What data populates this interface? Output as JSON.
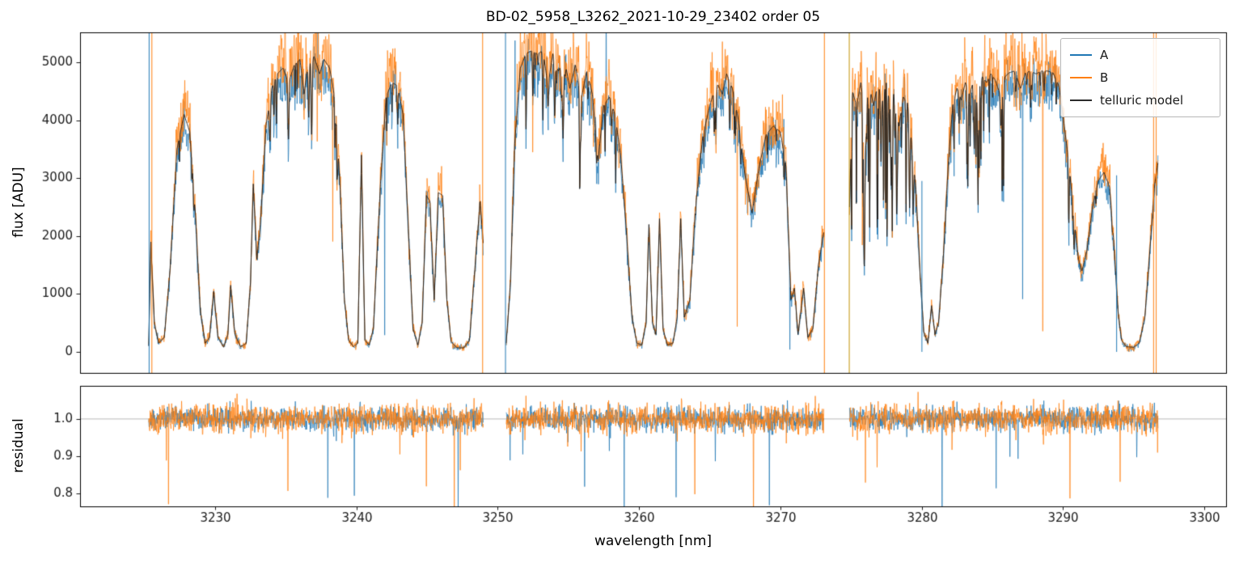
{
  "chart_data": {
    "type": "line",
    "title": "BD-02_5958_L3262_2021-10-29_23402  order 05",
    "xlabel": "wavelength [nm]",
    "ylabel_top": "flux [ADU]",
    "ylabel_bottom": "residual",
    "x_range": [
      3220.44,
      3301.55
    ],
    "flux_range": [
      -363,
      5517
    ],
    "residual_range": [
      0.765,
      1.089
    ],
    "x_ticks": [
      3230,
      3240,
      3250,
      3260,
      3270,
      3280,
      3290,
      3300
    ],
    "flux_ticks": [
      0,
      1000,
      2000,
      3000,
      4000,
      5000
    ],
    "residual_ticks": {
      "values": [
        0.8,
        0.9,
        1.0
      ],
      "labels": [
        "0.8",
        "0.9",
        "1.0"
      ]
    },
    "residual_reference_line": 1.0,
    "legend": {
      "entries": [
        {
          "label": "A",
          "color": "#1f77b4"
        },
        {
          "label": "B",
          "color": "#ff7f0e"
        },
        {
          "label": "telluric model",
          "color": "#2b2b2b"
        }
      ]
    },
    "series_scales": {
      "A": 0.955,
      "B": 1.035
    },
    "noise": {
      "A_base": 25,
      "A_prop": 0.04,
      "B_base": 30,
      "B_prop": 0.05,
      "spike_prob": 0.0035,
      "residual_sigma_A": 0.016,
      "residual_sigma_B": 0.02,
      "residual_spike_prob": 0.004
    },
    "vertical_spikes": [
      {
        "x": 3225.33,
        "color": "#1f77b4"
      },
      {
        "x": 3225.52,
        "color": "#ff7f0e"
      },
      {
        "x": 3248.93,
        "color": "#ff7f0e"
      },
      {
        "x": 3250.55,
        "color": "#1f77b4"
      },
      {
        "x": 3273.12,
        "color": "#ff7f0e"
      },
      {
        "x": 3274.88,
        "color": "#c49102"
      },
      {
        "x": 3280.02,
        "color": "#1f77b4",
        "flux_top": 2950
      },
      {
        "x": 3293.8,
        "color": "#1f77b4",
        "flux_top": 3050
      },
      {
        "x": 3296.42,
        "color": "#ff7f0e"
      },
      {
        "x": 3296.6,
        "color": "#ff7f0e"
      }
    ],
    "segments": [
      {
        "x_start": 3225.3,
        "x_end": 3249.0,
        "model_points": [
          [
            3225.3,
            100
          ],
          [
            3225.45,
            1900
          ],
          [
            3225.7,
            500
          ],
          [
            3226.0,
            150
          ],
          [
            3226.4,
            250
          ],
          [
            3226.8,
            1400
          ],
          [
            3227.3,
            3500
          ],
          [
            3227.8,
            4100
          ],
          [
            3228.2,
            3800
          ],
          [
            3228.6,
            2400
          ],
          [
            3228.95,
            700
          ],
          [
            3229.3,
            150
          ],
          [
            3229.6,
            250
          ],
          [
            3229.9,
            1050
          ],
          [
            3230.2,
            250
          ],
          [
            3230.6,
            80
          ],
          [
            3230.9,
            300
          ],
          [
            3231.1,
            1150
          ],
          [
            3231.4,
            300
          ],
          [
            3231.8,
            90
          ],
          [
            3232.2,
            150
          ],
          [
            3232.5,
            1200
          ],
          [
            3232.7,
            2900
          ],
          [
            3232.95,
            1600
          ],
          [
            3233.2,
            2200
          ],
          [
            3233.6,
            3900
          ],
          [
            3234.0,
            4550
          ],
          [
            3234.4,
            4800
          ],
          [
            3234.8,
            4900
          ],
          [
            3235.2,
            4650
          ],
          [
            3235.6,
            4950
          ],
          [
            3236.0,
            5050
          ],
          [
            3236.3,
            4450
          ],
          [
            3236.6,
            5050
          ],
          [
            3237.0,
            5100
          ],
          [
            3237.4,
            4800
          ],
          [
            3237.7,
            5050
          ],
          [
            3238.1,
            4900
          ],
          [
            3238.5,
            4350
          ],
          [
            3238.85,
            2800
          ],
          [
            3239.15,
            900
          ],
          [
            3239.45,
            200
          ],
          [
            3239.8,
            90
          ],
          [
            3240.1,
            150
          ],
          [
            3240.35,
            3400
          ],
          [
            3240.6,
            200
          ],
          [
            3240.9,
            120
          ],
          [
            3241.2,
            400
          ],
          [
            3241.7,
            2900
          ],
          [
            3242.1,
            4400
          ],
          [
            3242.5,
            4650
          ],
          [
            3242.9,
            4600
          ],
          [
            3243.3,
            4100
          ],
          [
            3243.7,
            2000
          ],
          [
            3244.0,
            400
          ],
          [
            3244.35,
            120
          ],
          [
            3244.65,
            500
          ],
          [
            3244.95,
            2700
          ],
          [
            3245.2,
            2600
          ],
          [
            3245.5,
            900
          ],
          [
            3245.8,
            2750
          ],
          [
            3246.1,
            2700
          ],
          [
            3246.4,
            900
          ],
          [
            3246.7,
            180
          ],
          [
            3247.1,
            70
          ],
          [
            3247.6,
            70
          ],
          [
            3248.0,
            200
          ],
          [
            3248.4,
            1500
          ],
          [
            3248.75,
            2600
          ],
          [
            3249.0,
            1800
          ]
        ],
        "line_regions": [
          {
            "start": 3233.5,
            "end": 3238.7,
            "count": 14,
            "depth": [
              0.04,
              0.22
            ],
            "width": [
              0.02,
              0.06
            ]
          },
          {
            "start": 3241.6,
            "end": 3243.4,
            "count": 5,
            "depth": [
              0.04,
              0.18
            ],
            "width": [
              0.02,
              0.05
            ]
          },
          {
            "start": 3227.0,
            "end": 3228.6,
            "count": 3,
            "depth": [
              0.05,
              0.15
            ],
            "width": [
              0.02,
              0.05
            ]
          }
        ]
      },
      {
        "x_start": 3250.6,
        "x_end": 3273.1,
        "model_points": [
          [
            3250.6,
            150
          ],
          [
            3250.9,
            1200
          ],
          [
            3251.2,
            3600
          ],
          [
            3251.6,
            4900
          ],
          [
            3252.0,
            5150
          ],
          [
            3252.4,
            5200
          ],
          [
            3252.8,
            5150
          ],
          [
            3253.2,
            5200
          ],
          [
            3253.55,
            4600
          ],
          [
            3253.9,
            5150
          ],
          [
            3254.3,
            4850
          ],
          [
            3254.7,
            5100
          ],
          [
            3255.1,
            4550
          ],
          [
            3255.5,
            4950
          ],
          [
            3255.9,
            4350
          ],
          [
            3256.3,
            4850
          ],
          [
            3256.7,
            4450
          ],
          [
            3257.1,
            3300
          ],
          [
            3257.5,
            4250
          ],
          [
            3257.9,
            4400
          ],
          [
            3258.3,
            4100
          ],
          [
            3258.7,
            3400
          ],
          [
            3259.1,
            2100
          ],
          [
            3259.5,
            600
          ],
          [
            3259.85,
            150
          ],
          [
            3260.2,
            120
          ],
          [
            3260.5,
            500
          ],
          [
            3260.7,
            2200
          ],
          [
            3260.95,
            500
          ],
          [
            3261.2,
            300
          ],
          [
            3261.45,
            2300
          ],
          [
            3261.7,
            400
          ],
          [
            3262.0,
            120
          ],
          [
            3262.4,
            150
          ],
          [
            3262.7,
            600
          ],
          [
            3262.95,
            2300
          ],
          [
            3263.2,
            600
          ],
          [
            3263.6,
            900
          ],
          [
            3264.0,
            2500
          ],
          [
            3264.5,
            3700
          ],
          [
            3265.0,
            4250
          ],
          [
            3265.5,
            4650
          ],
          [
            3265.9,
            4450
          ],
          [
            3266.2,
            4800
          ],
          [
            3266.6,
            4550
          ],
          [
            3267.0,
            4050
          ],
          [
            3267.5,
            3050
          ],
          [
            3268.0,
            2400
          ],
          [
            3268.5,
            3200
          ],
          [
            3269.0,
            3750
          ],
          [
            3269.5,
            3900
          ],
          [
            3270.0,
            3800
          ],
          [
            3270.4,
            3200
          ],
          [
            3270.75,
            900
          ],
          [
            3271.0,
            1100
          ],
          [
            3271.25,
            300
          ],
          [
            3271.65,
            1100
          ],
          [
            3271.95,
            250
          ],
          [
            3272.3,
            400
          ],
          [
            3272.7,
            1500
          ],
          [
            3273.1,
            2100
          ]
        ],
        "line_regions": [
          {
            "start": 3251.5,
            "end": 3258.6,
            "count": 20,
            "depth": [
              0.04,
              0.28
            ],
            "width": [
              0.02,
              0.06
            ]
          },
          {
            "start": 3264.0,
            "end": 3267.4,
            "count": 9,
            "depth": [
              0.04,
              0.2
            ],
            "width": [
              0.02,
              0.05
            ]
          },
          {
            "start": 3269.0,
            "end": 3270.3,
            "count": 3,
            "depth": [
              0.04,
              0.15
            ],
            "width": [
              0.02,
              0.05
            ]
          }
        ]
      },
      {
        "x_start": 3274.9,
        "x_end": 3296.75,
        "model_points": [
          [
            3274.9,
            2500
          ],
          [
            3275.1,
            4500
          ],
          [
            3275.4,
            4250
          ],
          [
            3275.7,
            4650
          ],
          [
            3276.0,
            4100
          ],
          [
            3276.3,
            4600
          ],
          [
            3276.6,
            4250
          ],
          [
            3276.9,
            4650
          ],
          [
            3277.2,
            4300
          ],
          [
            3277.5,
            4650
          ],
          [
            3277.8,
            4200
          ],
          [
            3278.1,
            4550
          ],
          [
            3278.4,
            3900
          ],
          [
            3278.7,
            4400
          ],
          [
            3279.0,
            4300
          ],
          [
            3279.3,
            3600
          ],
          [
            3279.6,
            2800
          ],
          [
            3279.9,
            1300
          ],
          [
            3280.15,
            350
          ],
          [
            3280.45,
            150
          ],
          [
            3280.7,
            800
          ],
          [
            3280.95,
            300
          ],
          [
            3281.2,
            500
          ],
          [
            3281.55,
            1700
          ],
          [
            3281.9,
            3300
          ],
          [
            3282.2,
            4250
          ],
          [
            3282.5,
            4550
          ],
          [
            3282.8,
            4350
          ],
          [
            3283.1,
            4650
          ],
          [
            3283.4,
            4450
          ],
          [
            3283.7,
            4700
          ],
          [
            3284.0,
            4550
          ],
          [
            3284.3,
            4750
          ],
          [
            3284.6,
            4650
          ],
          [
            3284.9,
            4800
          ],
          [
            3285.2,
            4700
          ],
          [
            3285.55,
            4450
          ],
          [
            3285.9,
            4750
          ],
          [
            3286.2,
            4820
          ],
          [
            3286.6,
            4850
          ],
          [
            3287.0,
            4550
          ],
          [
            3287.35,
            4820
          ],
          [
            3287.7,
            4850
          ],
          [
            3288.1,
            4800
          ],
          [
            3288.5,
            4850
          ],
          [
            3288.9,
            4850
          ],
          [
            3289.3,
            4820
          ],
          [
            3289.7,
            4600
          ],
          [
            3290.0,
            4100
          ],
          [
            3290.4,
            3300
          ],
          [
            3290.8,
            2300
          ],
          [
            3291.1,
            1600
          ],
          [
            3291.35,
            1400
          ],
          [
            3291.7,
            1750
          ],
          [
            3292.1,
            2500
          ],
          [
            3292.5,
            2950
          ],
          [
            3292.9,
            3100
          ],
          [
            3293.3,
            2850
          ],
          [
            3293.6,
            1900
          ],
          [
            3293.9,
            700
          ],
          [
            3294.15,
            200
          ],
          [
            3294.5,
            90
          ],
          [
            3295.0,
            80
          ],
          [
            3295.4,
            150
          ],
          [
            3295.8,
            600
          ],
          [
            3296.2,
            1900
          ],
          [
            3296.5,
            2900
          ],
          [
            3296.75,
            3300
          ]
        ],
        "line_regions": [
          {
            "start": 3275.0,
            "end": 3279.6,
            "count": 30,
            "depth": [
              0.08,
              0.55
            ],
            "width": [
              0.015,
              0.05
            ]
          },
          {
            "start": 3281.8,
            "end": 3286.0,
            "count": 18,
            "depth": [
              0.05,
              0.4
            ],
            "width": [
              0.015,
              0.05
            ]
          },
          {
            "start": 3286.2,
            "end": 3289.7,
            "count": 9,
            "depth": [
              0.02,
              0.1
            ],
            "width": [
              0.02,
              0.05
            ]
          },
          {
            "start": 3290.2,
            "end": 3293.5,
            "count": 6,
            "depth": [
              0.05,
              0.3
            ],
            "width": [
              0.02,
              0.05
            ]
          }
        ]
      }
    ]
  }
}
